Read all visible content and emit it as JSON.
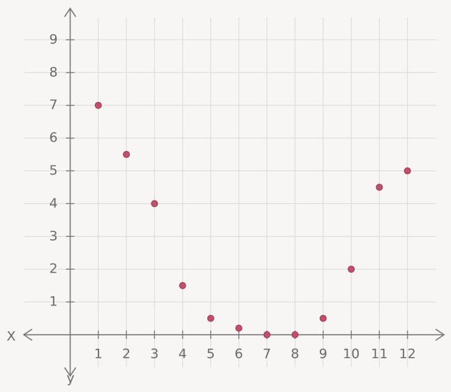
{
  "chart_data": {
    "type": "scatter",
    "x_label": "X",
    "y_label": "y",
    "x": [
      1,
      2,
      3,
      4,
      5,
      6,
      7,
      8,
      9,
      10,
      11,
      12
    ],
    "values": [
      7,
      5.5,
      4,
      1.5,
      0.5,
      0.2,
      0,
      0,
      0.5,
      2,
      4.5,
      5
    ],
    "color": "#c2506c",
    "xlim": [
      -2,
      13.4
    ],
    "ylim": [
      -1.3,
      10
    ],
    "xticks": [
      1,
      2,
      3,
      4,
      5,
      6,
      7,
      8,
      9,
      10,
      11,
      12
    ],
    "yticks": [
      1,
      2,
      3,
      4,
      5,
      6,
      7,
      8,
      9
    ],
    "grid": true
  }
}
